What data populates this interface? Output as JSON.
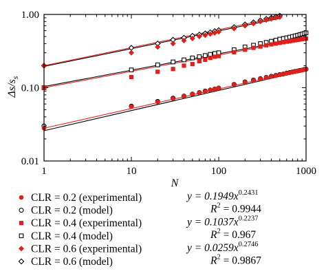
{
  "chart_data": {
    "type": "scatter",
    "xscale": "log",
    "yscale": "log",
    "xlim": [
      1,
      1000
    ],
    "ylim": [
      0.01,
      1.0
    ],
    "xlabel": "N",
    "ylabel": "Δs/s_s",
    "ylabel_main": "Δs/s",
    "ylabel_sub": "s",
    "xticks": [
      1,
      10,
      100,
      1000
    ],
    "xtick_labels": [
      "1",
      "10",
      "100",
      "1000"
    ],
    "yticks": [
      0.01,
      0.1,
      1.0
    ],
    "ytick_labels": [
      "0.01",
      "0.10",
      "1.00"
    ],
    "grid": false,
    "legend_placement": "below",
    "series": [
      {
        "name": "CLR = 0.2 (experimental)",
        "marker": "filled-circle",
        "color": "#e0201b",
        "x": [
          1,
          10,
          20,
          30,
          40,
          50,
          60,
          70,
          80,
          90,
          100,
          150,
          200,
          250,
          300,
          350,
          400,
          450,
          500,
          550,
          600,
          650,
          700,
          750,
          800,
          850,
          900,
          950,
          1000
        ],
        "y": [
          0.028,
          0.055,
          0.064,
          0.071,
          0.077,
          0.082,
          0.086,
          0.089,
          0.093,
          0.096,
          0.099,
          0.111,
          0.119,
          0.126,
          0.132,
          0.137,
          0.142,
          0.146,
          0.15,
          0.154,
          0.157,
          0.16,
          0.163,
          0.166,
          0.169,
          0.171,
          0.174,
          0.176,
          0.178
        ]
      },
      {
        "name": "CLR = 0.2 (model)",
        "marker": "open-circle",
        "color": "#000000",
        "x": [
          1,
          10,
          20,
          30,
          40,
          50,
          60,
          70,
          80,
          90,
          100,
          150,
          200,
          250,
          300,
          350,
          400,
          450,
          500,
          550,
          600,
          650,
          700,
          750,
          800,
          850,
          900,
          950,
          1000
        ],
        "y": [
          0.03,
          0.056,
          0.065,
          0.072,
          0.077,
          0.082,
          0.086,
          0.09,
          0.093,
          0.096,
          0.099,
          0.111,
          0.12,
          0.127,
          0.133,
          0.138,
          0.143,
          0.147,
          0.151,
          0.154,
          0.158,
          0.161,
          0.164,
          0.167,
          0.169,
          0.172,
          0.174,
          0.177,
          0.179
        ]
      },
      {
        "name": "CLR = 0.4 (experimental)",
        "marker": "filled-square",
        "color": "#e0201b",
        "x": [
          1,
          10,
          20,
          30,
          40,
          50,
          60,
          70,
          80,
          90,
          100,
          150,
          200,
          250,
          300,
          350,
          400,
          450,
          500,
          550,
          600,
          650,
          700,
          750,
          800,
          850,
          900,
          950,
          1000
        ],
        "y": [
          0.1,
          0.14,
          0.165,
          0.18,
          0.2,
          0.21,
          0.23,
          0.24,
          0.255,
          0.265,
          0.27,
          0.305,
          0.33,
          0.35,
          0.365,
          0.38,
          0.39,
          0.4,
          0.41,
          0.418,
          0.425,
          0.432,
          0.438,
          0.444,
          0.45,
          0.455,
          0.46,
          0.464,
          0.468
        ]
      },
      {
        "name": "CLR = 0.4 (model)",
        "marker": "open-square",
        "color": "#000000",
        "x": [
          1,
          10,
          20,
          30,
          40,
          50,
          60,
          70,
          80,
          90,
          100,
          150,
          200,
          250,
          300,
          350,
          400,
          450,
          500,
          550,
          600,
          650,
          700,
          750,
          800,
          850,
          900,
          950,
          1000
        ],
        "y": [
          0.1,
          0.175,
          0.205,
          0.225,
          0.24,
          0.255,
          0.265,
          0.275,
          0.285,
          0.293,
          0.3,
          0.33,
          0.36,
          0.38,
          0.4,
          0.415,
          0.43,
          0.445,
          0.46,
          0.47,
          0.48,
          0.49,
          0.5,
          0.51,
          0.52,
          0.53,
          0.54,
          0.55,
          0.56
        ]
      },
      {
        "name": "CLR = 0.6 (experimental)",
        "marker": "filled-diamond",
        "color": "#e0201b",
        "x": [
          1,
          10,
          20,
          30,
          40,
          50,
          60,
          70,
          80,
          90,
          100,
          150,
          200,
          250,
          300,
          350,
          400,
          450,
          500
        ],
        "y": [
          0.2,
          0.3,
          0.36,
          0.4,
          0.44,
          0.47,
          0.5,
          0.52,
          0.54,
          0.56,
          0.58,
          0.64,
          0.7,
          0.75,
          0.8,
          0.84,
          0.87,
          0.9,
          0.92
        ]
      },
      {
        "name": "CLR = 0.6 (model)",
        "marker": "open-diamond",
        "color": "#000000",
        "x": [
          1,
          10,
          20,
          30,
          40,
          50,
          60,
          70,
          80,
          90,
          100,
          150,
          200,
          250,
          300,
          350,
          400,
          450,
          500
        ],
        "y": [
          0.2,
          0.35,
          0.4,
          0.45,
          0.48,
          0.51,
          0.53,
          0.55,
          0.57,
          0.59,
          0.61,
          0.67,
          0.73,
          0.78,
          0.83,
          0.87,
          0.9,
          0.93,
          0.96
        ]
      }
    ],
    "fits": [
      {
        "a": 0.1949,
        "b": 0.2431,
        "x_end": 500
      },
      {
        "a": 0.1037,
        "b": 0.2237,
        "x_end": 1000
      },
      {
        "a": 0.0259,
        "b": 0.2746,
        "x_end": 1000
      }
    ],
    "equations": [
      {
        "y_prefix": "y = 0.1949",
        "x_var": "x",
        "exponent": "0.2431",
        "r2_prefix": "R",
        "r2_exp": "2",
        "r2_value": " = 0.9944"
      },
      {
        "y_prefix": "y = 0.1037",
        "x_var": "x",
        "exponent": "0.2237",
        "r2_prefix": "R",
        "r2_exp": "2",
        "r2_value": " = 0.967"
      },
      {
        "y_prefix": "y = 0.0259",
        "x_var": "x",
        "exponent": "0.2746",
        "r2_prefix": "R",
        "r2_exp": "2",
        "r2_value": " = 0.9867"
      }
    ]
  }
}
